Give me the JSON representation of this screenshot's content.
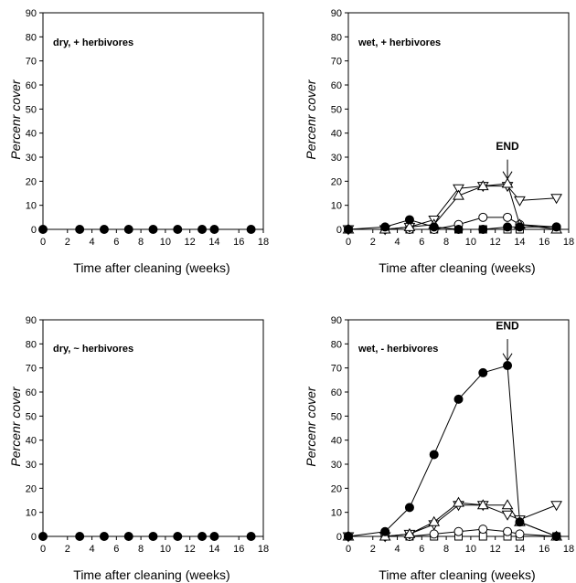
{
  "chart_data": [
    {
      "type": "line",
      "panel_label": "dry, + herbivores",
      "xlabel": "Time after cleaning (weeks)",
      "ylabel": "Percenr cover",
      "xlim": [
        0,
        18
      ],
      "ylim": [
        0,
        90
      ],
      "xticks": [
        0,
        2,
        4,
        6,
        8,
        10,
        12,
        14,
        16,
        18
      ],
      "yticks": [
        0,
        10,
        20,
        30,
        40,
        50,
        60,
        70,
        80,
        90
      ],
      "grid": false,
      "annotation": null,
      "series": [
        {
          "marker": "filled-circle",
          "x": [
            0,
            3,
            5,
            7,
            9,
            11,
            13,
            14,
            17
          ],
          "y": [
            0,
            0,
            0,
            0,
            0,
            0,
            0,
            0,
            0
          ]
        }
      ]
    },
    {
      "type": "line",
      "panel_label": "wet, + herbivores",
      "xlabel": "Time after cleaning (weeks)",
      "ylabel": "Percenr cover",
      "xlim": [
        0,
        18
      ],
      "ylim": [
        0,
        90
      ],
      "xticks": [
        0,
        2,
        4,
        6,
        8,
        10,
        12,
        14,
        16,
        18
      ],
      "yticks": [
        0,
        10,
        20,
        30,
        40,
        50,
        60,
        70,
        80,
        90
      ],
      "grid": false,
      "annotation": {
        "text": "END",
        "x": 13,
        "y_text": 33,
        "y_arrow_start": 29,
        "y_arrow_end": 21
      },
      "series": [
        {
          "marker": "filled-circle",
          "x": [
            0,
            3,
            5,
            7,
            9,
            11,
            13,
            14,
            17
          ],
          "y": [
            0,
            1,
            4,
            1,
            0,
            0,
            1,
            1,
            1
          ]
        },
        {
          "marker": "open-circle",
          "x": [
            0,
            3,
            5,
            7,
            9,
            11,
            13,
            14,
            17
          ],
          "y": [
            0,
            0,
            0,
            0,
            2,
            5,
            5,
            2,
            1
          ]
        },
        {
          "marker": "open-square",
          "x": [
            0,
            3,
            5,
            7,
            9,
            11,
            13,
            14,
            17
          ],
          "y": [
            0,
            0,
            0,
            0,
            0,
            0,
            0,
            0,
            0
          ]
        },
        {
          "marker": "open-triangle-up",
          "x": [
            0,
            3,
            5,
            7,
            9,
            11,
            13,
            14,
            17
          ],
          "y": [
            0,
            0,
            1,
            2,
            14,
            18,
            19,
            2,
            0
          ]
        },
        {
          "marker": "open-triangle-down",
          "x": [
            0,
            3,
            5,
            7,
            9,
            11,
            13,
            14,
            17
          ],
          "y": [
            0,
            0,
            1,
            4,
            17,
            18,
            18,
            12,
            13
          ]
        }
      ]
    },
    {
      "type": "line",
      "panel_label": "dry, ~ herbivores",
      "xlabel": "Time after cleaning (weeks)",
      "ylabel": "Percenr cover",
      "xlim": [
        0,
        18
      ],
      "ylim": [
        0,
        90
      ],
      "xticks": [
        0,
        2,
        4,
        6,
        8,
        10,
        12,
        14,
        16,
        18
      ],
      "yticks": [
        0,
        10,
        20,
        30,
        40,
        50,
        60,
        70,
        80,
        90
      ],
      "grid": false,
      "annotation": null,
      "series": [
        {
          "marker": "filled-circle",
          "x": [
            0,
            3,
            5,
            7,
            9,
            11,
            13,
            14,
            17
          ],
          "y": [
            0,
            0,
            0,
            0,
            0,
            0,
            0,
            0,
            0
          ]
        }
      ]
    },
    {
      "type": "line",
      "panel_label": "wet, - herbivores",
      "xlabel": "Time after cleaning (weeks)",
      "ylabel": "Percenr cover",
      "xlim": [
        0,
        18
      ],
      "ylim": [
        0,
        90
      ],
      "xticks": [
        0,
        2,
        4,
        6,
        8,
        10,
        12,
        14,
        16,
        18
      ],
      "yticks": [
        0,
        10,
        20,
        30,
        40,
        50,
        60,
        70,
        80,
        90
      ],
      "grid": false,
      "annotation": {
        "text": "END",
        "x": 13,
        "y_text": 86,
        "y_arrow_start": 82,
        "y_arrow_end": 73
      },
      "series": [
        {
          "marker": "filled-circle",
          "x": [
            0,
            3,
            5,
            7,
            9,
            11,
            13,
            14,
            17
          ],
          "y": [
            0,
            2,
            12,
            34,
            57,
            68,
            71,
            6,
            0
          ]
        },
        {
          "marker": "open-circle",
          "x": [
            0,
            3,
            5,
            7,
            9,
            11,
            13,
            14,
            17
          ],
          "y": [
            0,
            0,
            0,
            1,
            2,
            3,
            2,
            1,
            0
          ]
        },
        {
          "marker": "open-square",
          "x": [
            0,
            3,
            5,
            7,
            9,
            11,
            13,
            14,
            17
          ],
          "y": [
            0,
            0,
            0,
            0,
            0,
            0,
            0,
            0,
            0
          ]
        },
        {
          "marker": "open-triangle-up",
          "x": [
            0,
            3,
            5,
            7,
            9,
            11,
            13,
            14,
            17
          ],
          "y": [
            0,
            0,
            1,
            6,
            14,
            13,
            13,
            6,
            0
          ]
        },
        {
          "marker": "open-triangle-down",
          "x": [
            0,
            3,
            5,
            7,
            9,
            11,
            13,
            14,
            17
          ],
          "y": [
            0,
            0,
            1,
            5,
            13,
            13,
            9,
            7,
            13
          ]
        }
      ]
    }
  ]
}
